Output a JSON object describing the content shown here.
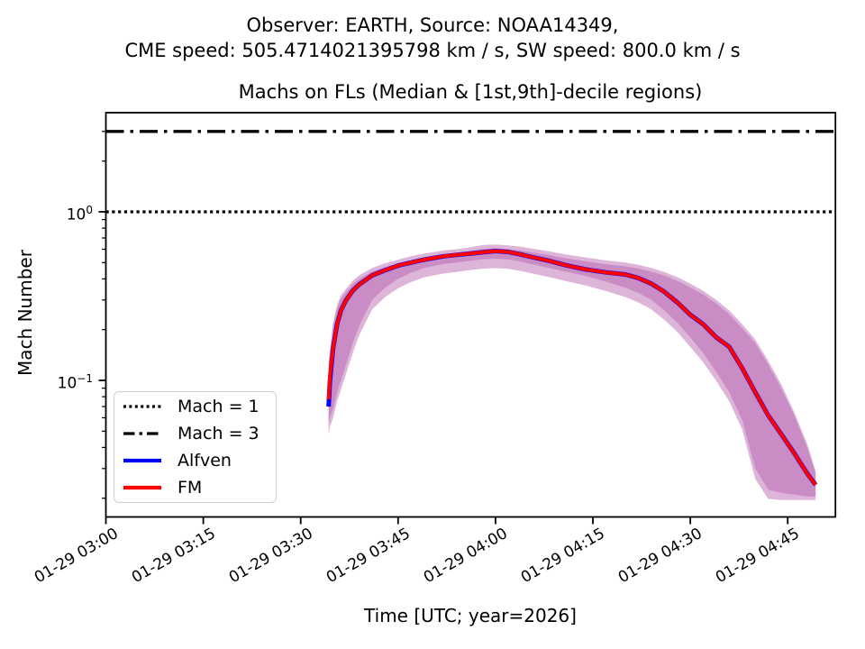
{
  "figure": {
    "suptitle_line1": "Observer: EARTH, Source: NOAA14349,",
    "suptitle_line2": "CME speed: 505.4714021395798 km / s, SW speed: 800.0 km / s"
  },
  "chart_data": {
    "type": "line",
    "title": "Machs on FLs (Median & [1st,9th]-decile regions)",
    "xlabel": "Time [UTC; year=2026]",
    "ylabel": "Mach Number",
    "yscale": "log",
    "ylim": [
      0.0155,
      3.9
    ],
    "x_axis_note": "minutes after 2026-01-29 03:00 UTC",
    "xlim_minutes": [
      0,
      112.3
    ],
    "x_ticklabels": [
      "01-29 03:00",
      "01-29 03:15",
      "01-29 03:30",
      "01-29 03:45",
      "01-29 04:00",
      "01-29 04:15",
      "01-29 04:30",
      "01-29 04:45"
    ],
    "x_tick_minutes": [
      0,
      15,
      30,
      45,
      60,
      75,
      90,
      105
    ],
    "y_major_ticks": [
      {
        "label": "10^0",
        "value": 1
      },
      {
        "label": "10^-1",
        "value": 0.1
      }
    ],
    "y_minor_tick_values": [
      3,
      2,
      0.9,
      0.8,
      0.7,
      0.6,
      0.5,
      0.4,
      0.3,
      0.2,
      0.09,
      0.08,
      0.07,
      0.06,
      0.05,
      0.04,
      0.03,
      0.02
    ],
    "grid": false,
    "legend_position": "lower left",
    "reference_lines": [
      {
        "label": "Mach = 1",
        "value": 1.0,
        "style": "dotted",
        "color": "#000000"
      },
      {
        "label": "Mach = 3",
        "value": 3.0,
        "style": "dashdot",
        "color": "#000000"
      }
    ],
    "band_color": "#b45caa",
    "band_opacity": 0.45,
    "x_minutes": [
      34.3,
      34.5,
      35.0,
      35.6,
      36.2,
      37.0,
      38.0,
      39.0,
      41.0,
      43.0,
      45.0,
      47.0,
      49.0,
      52.0,
      54.0,
      56.0,
      58.0,
      60.0,
      62.0,
      64.0,
      65.0,
      68.0,
      71.0,
      74.0,
      77.0,
      80.0,
      82.0,
      84.0,
      86.0,
      88.0,
      90.0,
      92.0,
      94.0,
      96.0,
      98.0,
      100.0,
      102.0,
      104.0,
      106.0,
      108.0,
      109.3
    ],
    "series": [
      {
        "name": "Alfven",
        "color": "#0000ff",
        "median": [
          0.07,
          0.098,
          0.155,
          0.215,
          0.26,
          0.3,
          0.34,
          0.37,
          0.42,
          0.45,
          0.48,
          0.5,
          0.52,
          0.545,
          0.555,
          0.565,
          0.575,
          0.585,
          0.578,
          0.558,
          0.545,
          0.515,
          0.48,
          0.455,
          0.437,
          0.425,
          0.405,
          0.375,
          0.335,
          0.29,
          0.245,
          0.215,
          0.18,
          0.158,
          0.118,
          0.085,
          0.062,
          0.048,
          0.037,
          0.028,
          0.024
        ],
        "p10": [
          0.048,
          0.053,
          0.06,
          0.075,
          0.088,
          0.11,
          0.145,
          0.185,
          0.264,
          0.312,
          0.352,
          0.383,
          0.409,
          0.431,
          0.44,
          0.451,
          0.46,
          0.464,
          0.459,
          0.444,
          0.436,
          0.412,
          0.387,
          0.365,
          0.339,
          0.312,
          0.29,
          0.264,
          0.229,
          0.194,
          0.158,
          0.128,
          0.099,
          0.075,
          0.051,
          0.026,
          0.0198,
          0.0195,
          0.0195,
          0.0195,
          0.0195
        ],
        "p90": [
          0.124,
          0.143,
          0.209,
          0.266,
          0.304,
          0.333,
          0.371,
          0.399,
          0.442,
          0.47,
          0.494,
          0.518,
          0.537,
          0.561,
          0.57,
          0.584,
          0.603,
          0.608,
          0.6,
          0.589,
          0.58,
          0.556,
          0.529,
          0.508,
          0.489,
          0.475,
          0.461,
          0.442,
          0.418,
          0.39,
          0.356,
          0.323,
          0.285,
          0.247,
          0.204,
          0.166,
          0.124,
          0.09,
          0.062,
          0.04,
          0.028
        ]
      },
      {
        "name": "FM",
        "color": "#ff0000",
        "median": [
          0.077,
          0.105,
          0.155,
          0.215,
          0.26,
          0.3,
          0.34,
          0.37,
          0.42,
          0.45,
          0.48,
          0.5,
          0.52,
          0.545,
          0.555,
          0.565,
          0.575,
          0.585,
          0.578,
          0.558,
          0.545,
          0.515,
          0.48,
          0.455,
          0.437,
          0.425,
          0.405,
          0.375,
          0.335,
          0.29,
          0.245,
          0.215,
          0.18,
          0.158,
          0.118,
          0.085,
          0.062,
          0.048,
          0.037,
          0.028,
          0.024
        ],
        "p10": [
          0.055,
          0.06,
          0.068,
          0.085,
          0.1,
          0.125,
          0.165,
          0.21,
          0.3,
          0.355,
          0.4,
          0.435,
          0.465,
          0.49,
          0.5,
          0.512,
          0.523,
          0.527,
          0.522,
          0.505,
          0.495,
          0.468,
          0.44,
          0.415,
          0.385,
          0.355,
          0.33,
          0.3,
          0.26,
          0.22,
          0.18,
          0.145,
          0.112,
          0.085,
          0.058,
          0.03,
          0.0225,
          0.0215,
          0.021,
          0.0205,
          0.0205
        ],
        "p90": [
          0.13,
          0.15,
          0.22,
          0.28,
          0.32,
          0.35,
          0.39,
          0.42,
          0.465,
          0.495,
          0.52,
          0.545,
          0.565,
          0.59,
          0.6,
          0.615,
          0.635,
          0.64,
          0.632,
          0.62,
          0.61,
          0.585,
          0.557,
          0.535,
          0.515,
          0.5,
          0.485,
          0.465,
          0.44,
          0.41,
          0.375,
          0.34,
          0.3,
          0.26,
          0.215,
          0.175,
          0.131,
          0.095,
          0.065,
          0.042,
          0.029
        ]
      }
    ]
  },
  "legend": {
    "entries": [
      {
        "label": "Mach = 1",
        "line": "dotted",
        "color": "#000000"
      },
      {
        "label": "Mach = 3",
        "line": "dashdot",
        "color": "#000000"
      },
      {
        "label": "Alfven",
        "line": "solid",
        "color": "#0000ff"
      },
      {
        "label": "FM",
        "line": "solid",
        "color": "#ff0000"
      }
    ]
  }
}
